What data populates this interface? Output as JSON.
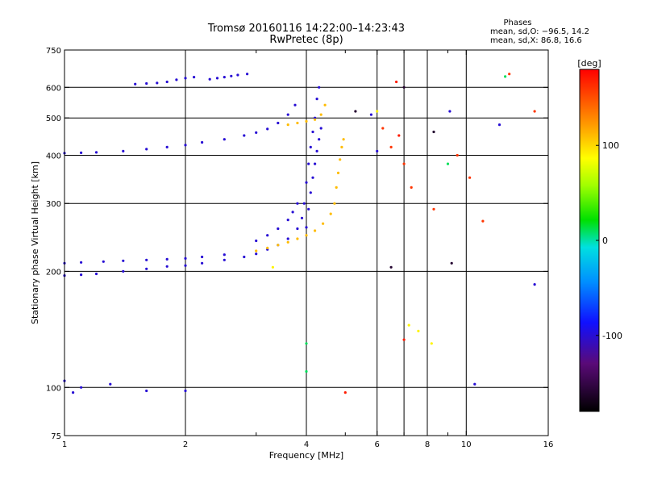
{
  "chart_data": {
    "type": "scatter",
    "title": "Tromsø 20160116 14:22:00–14:23:43",
    "subtitle": "RwPretec (8p)",
    "phases": {
      "header": "Phases",
      "line_o": "mean, sd,O: −96.5, 14.2",
      "line_x": "mean, sd,X:  86.8, 16.6"
    },
    "xlabel": "Frequency [MHz]",
    "ylabel": "Stationary phase Virtual Height [km]",
    "x_scale": "log",
    "y_scale": "log",
    "xlim": [
      1,
      16
    ],
    "ylim": [
      75,
      750
    ],
    "x_ticks": [
      1,
      2,
      4,
      6,
      8,
      10,
      16
    ],
    "x_minor_ticks": [
      3,
      5,
      7,
      9
    ],
    "y_ticks": [
      75,
      100,
      200,
      300,
      400,
      500,
      600,
      750
    ],
    "x_grid": [
      2,
      4,
      6,
      7,
      8,
      10
    ],
    "y_grid": [
      100,
      200,
      300,
      400,
      500,
      600
    ],
    "grid": true,
    "colorbar": {
      "label": "[deg]",
      "min": -180,
      "max": 180,
      "ticks": [
        -100,
        0,
        100
      ]
    },
    "traces": [
      {
        "name": "",
        "phase": -100,
        "points": [
          [
            1.0,
            195
          ],
          [
            1.1,
            196
          ],
          [
            1.2,
            197
          ],
          [
            1.4,
            200
          ],
          [
            1.6,
            203
          ],
          [
            1.8,
            206
          ],
          [
            2.0,
            207
          ],
          [
            2.2,
            210
          ],
          [
            2.5,
            214
          ],
          [
            2.8,
            218
          ],
          [
            3.0,
            222
          ],
          [
            3.2,
            228
          ],
          [
            3.4,
            234
          ],
          [
            3.6,
            243
          ],
          [
            3.8,
            258
          ],
          [
            3.9,
            275
          ],
          [
            3.95,
            300
          ],
          [
            4.0,
            340
          ],
          [
            4.05,
            380
          ],
          [
            4.1,
            420
          ],
          [
            4.15,
            460
          ],
          [
            4.2,
            500
          ],
          [
            4.25,
            560
          ],
          [
            4.3,
            600
          ]
        ]
      },
      {
        "name": "",
        "phase": -100,
        "points": [
          [
            1.0,
            210
          ],
          [
            1.1,
            211
          ],
          [
            1.25,
            212
          ],
          [
            1.4,
            213
          ],
          [
            1.6,
            214
          ],
          [
            1.8,
            215
          ],
          [
            2.0,
            216
          ],
          [
            2.2,
            218
          ],
          [
            2.5,
            221
          ]
        ]
      },
      {
        "name": "",
        "phase": -100,
        "points": [
          [
            3.0,
            240
          ],
          [
            3.2,
            248
          ],
          [
            3.4,
            258
          ],
          [
            3.6,
            272
          ],
          [
            3.7,
            285
          ],
          [
            3.8,
            300
          ]
        ]
      },
      {
        "name": "",
        "phase": -100,
        "points": [
          [
            1.0,
            405
          ],
          [
            1.1,
            406
          ],
          [
            1.2,
            407
          ],
          [
            1.4,
            410
          ],
          [
            1.6,
            415
          ],
          [
            1.8,
            420
          ],
          [
            2.0,
            425
          ],
          [
            2.2,
            432
          ],
          [
            2.5,
            440
          ],
          [
            2.8,
            450
          ],
          [
            3.0,
            458
          ],
          [
            3.2,
            468
          ],
          [
            3.4,
            485
          ],
          [
            3.6,
            510
          ],
          [
            3.75,
            540
          ]
        ]
      },
      {
        "name": "",
        "phase": -100,
        "points": [
          [
            1.5,
            612
          ],
          [
            1.6,
            614
          ],
          [
            1.7,
            616
          ],
          [
            1.8,
            620
          ],
          [
            1.9,
            628
          ],
          [
            2.0,
            634
          ],
          [
            2.1,
            638
          ]
        ]
      },
      {
        "name": "",
        "phase": -100,
        "points": [
          [
            2.3,
            630
          ],
          [
            2.4,
            634
          ],
          [
            2.5,
            638
          ],
          [
            2.6,
            642
          ],
          [
            2.7,
            646
          ],
          [
            2.85,
            650
          ]
        ]
      },
      {
        "name": "",
        "phase": -100,
        "points": [
          [
            4.0,
            260
          ],
          [
            4.05,
            290
          ],
          [
            4.1,
            320
          ],
          [
            4.15,
            350
          ],
          [
            4.2,
            380
          ],
          [
            4.25,
            410
          ],
          [
            4.3,
            440
          ],
          [
            4.35,
            470
          ]
        ]
      },
      {
        "name": "",
        "phase": 110,
        "points": [
          [
            3.0,
            226
          ],
          [
            3.2,
            230
          ],
          [
            3.4,
            234
          ],
          [
            3.6,
            238
          ],
          [
            3.8,
            243
          ],
          [
            4.0,
            248
          ],
          [
            4.2,
            255
          ],
          [
            4.4,
            266
          ],
          [
            4.6,
            282
          ],
          [
            4.7,
            300
          ],
          [
            4.75,
            330
          ],
          [
            4.8,
            360
          ],
          [
            4.85,
            390
          ],
          [
            4.9,
            420
          ],
          [
            4.95,
            440
          ]
        ]
      },
      {
        "name": "",
        "phase": 110,
        "points": [
          [
            3.6,
            480
          ],
          [
            3.8,
            485
          ],
          [
            4.0,
            490
          ],
          [
            4.2,
            495
          ],
          [
            4.35,
            510
          ],
          [
            4.45,
            540
          ]
        ]
      },
      {
        "name": "",
        "phase": 160,
        "points": [
          [
            6.2,
            470
          ],
          [
            6.5,
            420
          ],
          [
            7.0,
            380
          ],
          [
            7.3,
            330
          ],
          [
            8.3,
            290
          ],
          [
            9.5,
            400
          ],
          [
            10.2,
            350
          ],
          [
            11.0,
            270
          ],
          [
            12.8,
            650
          ],
          [
            14.8,
            520
          ]
        ]
      },
      {
        "name": "",
        "phase": 90,
        "points": [
          [
            7.2,
            145
          ],
          [
            7.6,
            140
          ],
          [
            8.2,
            130
          ],
          [
            6.0,
            520
          ],
          [
            3.3,
            205
          ]
        ]
      },
      {
        "name": "",
        "phase": -100,
        "points": [
          [
            1.0,
            104
          ],
          [
            1.05,
            97
          ],
          [
            1.1,
            100
          ],
          [
            1.3,
            102
          ],
          [
            1.6,
            98
          ],
          [
            2.0,
            98
          ],
          [
            9.1,
            520
          ],
          [
            10.5,
            102
          ],
          [
            12.1,
            480
          ],
          [
            14.8,
            185
          ],
          [
            5.8,
            510
          ],
          [
            6.0,
            410
          ]
        ]
      },
      {
        "name": "",
        "phase": -160,
        "points": [
          [
            6.5,
            205
          ],
          [
            7.0,
            600
          ],
          [
            8.3,
            460
          ],
          [
            9.2,
            210
          ],
          [
            5.3,
            520
          ]
        ]
      },
      {
        "name": "",
        "phase": 10,
        "points": [
          [
            4.0,
            110
          ],
          [
            4.0,
            130
          ],
          [
            9.0,
            380
          ],
          [
            12.5,
            640
          ]
        ]
      },
      {
        "name": "",
        "phase": 170,
        "points": [
          [
            5.0,
            97
          ],
          [
            7.0,
            133
          ],
          [
            6.8,
            450
          ],
          [
            6.7,
            620
          ]
        ]
      }
    ]
  }
}
